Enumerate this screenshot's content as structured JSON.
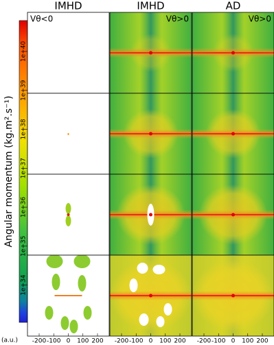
{
  "chart_data": {
    "type": "heatmap",
    "columns": [
      "IMHD",
      "IMHD",
      "AD"
    ],
    "panel_labels": [
      "Vθ<0",
      "Vθ>0",
      "Vθ>0"
    ],
    "ylabel": "Angular momentum (kg.m².s⁻¹)",
    "xlabel": "(a.u.)",
    "xlim": [
      -280,
      280
    ],
    "xticks": [
      -200,
      -100,
      0,
      100,
      200
    ],
    "log_scale": true,
    "ylim": [
      1.1e+33,
      6.2e+40
    ],
    "yticks": [
      {
        "value": 1e+34,
        "label": "1e+34"
      },
      {
        "value": 1e+35,
        "label": "1e+35"
      },
      {
        "value": 1e+36,
        "label": "1e+36"
      },
      {
        "value": 1e+37,
        "label": "1e+37"
      },
      {
        "value": 1e+38,
        "label": "1e+38"
      },
      {
        "value": 1e+39,
        "label": "1e+39"
      },
      {
        "value": 1e+40,
        "label": "1e+40"
      }
    ]
  }
}
